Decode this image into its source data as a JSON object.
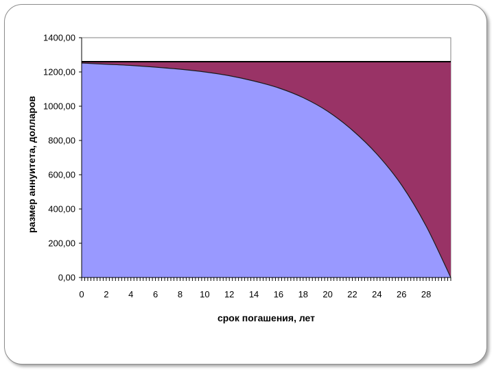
{
  "chart_data": {
    "type": "area",
    "title": "",
    "xlabel": "срок погашения, лет",
    "ylabel": "размер аннуитета, долларов",
    "xlim": [
      0,
      30
    ],
    "ylim": [
      0,
      1400
    ],
    "x_ticks": [
      "0",
      "2",
      "4",
      "6",
      "8",
      "10",
      "12",
      "14",
      "16",
      "18",
      "20",
      "22",
      "24",
      "26",
      "28"
    ],
    "y_ticks": [
      "0,00",
      "200,00",
      "400,00",
      "600,00",
      "800,00",
      "1000,00",
      "1200,00",
      "1400,00"
    ],
    "grid": false,
    "legend": "none",
    "x": [
      0,
      2,
      4,
      6,
      8,
      10,
      12,
      14,
      16,
      18,
      20,
      22,
      24,
      26,
      28,
      30
    ],
    "series": [
      {
        "values": [
          1252,
          1245,
          1238,
          1228,
          1216,
          1200,
          1178,
          1147,
          1107,
          1050,
          970,
          860,
          720,
          540,
          300,
          0
        ],
        "color": "#9999ff"
      },
      {
        "values": [
          8,
          15,
          22,
          32,
          44,
          60,
          82,
          113,
          153,
          210,
          290,
          400,
          540,
          720,
          960,
          1260
        ],
        "color": "#993366"
      }
    ],
    "total": 1260
  }
}
